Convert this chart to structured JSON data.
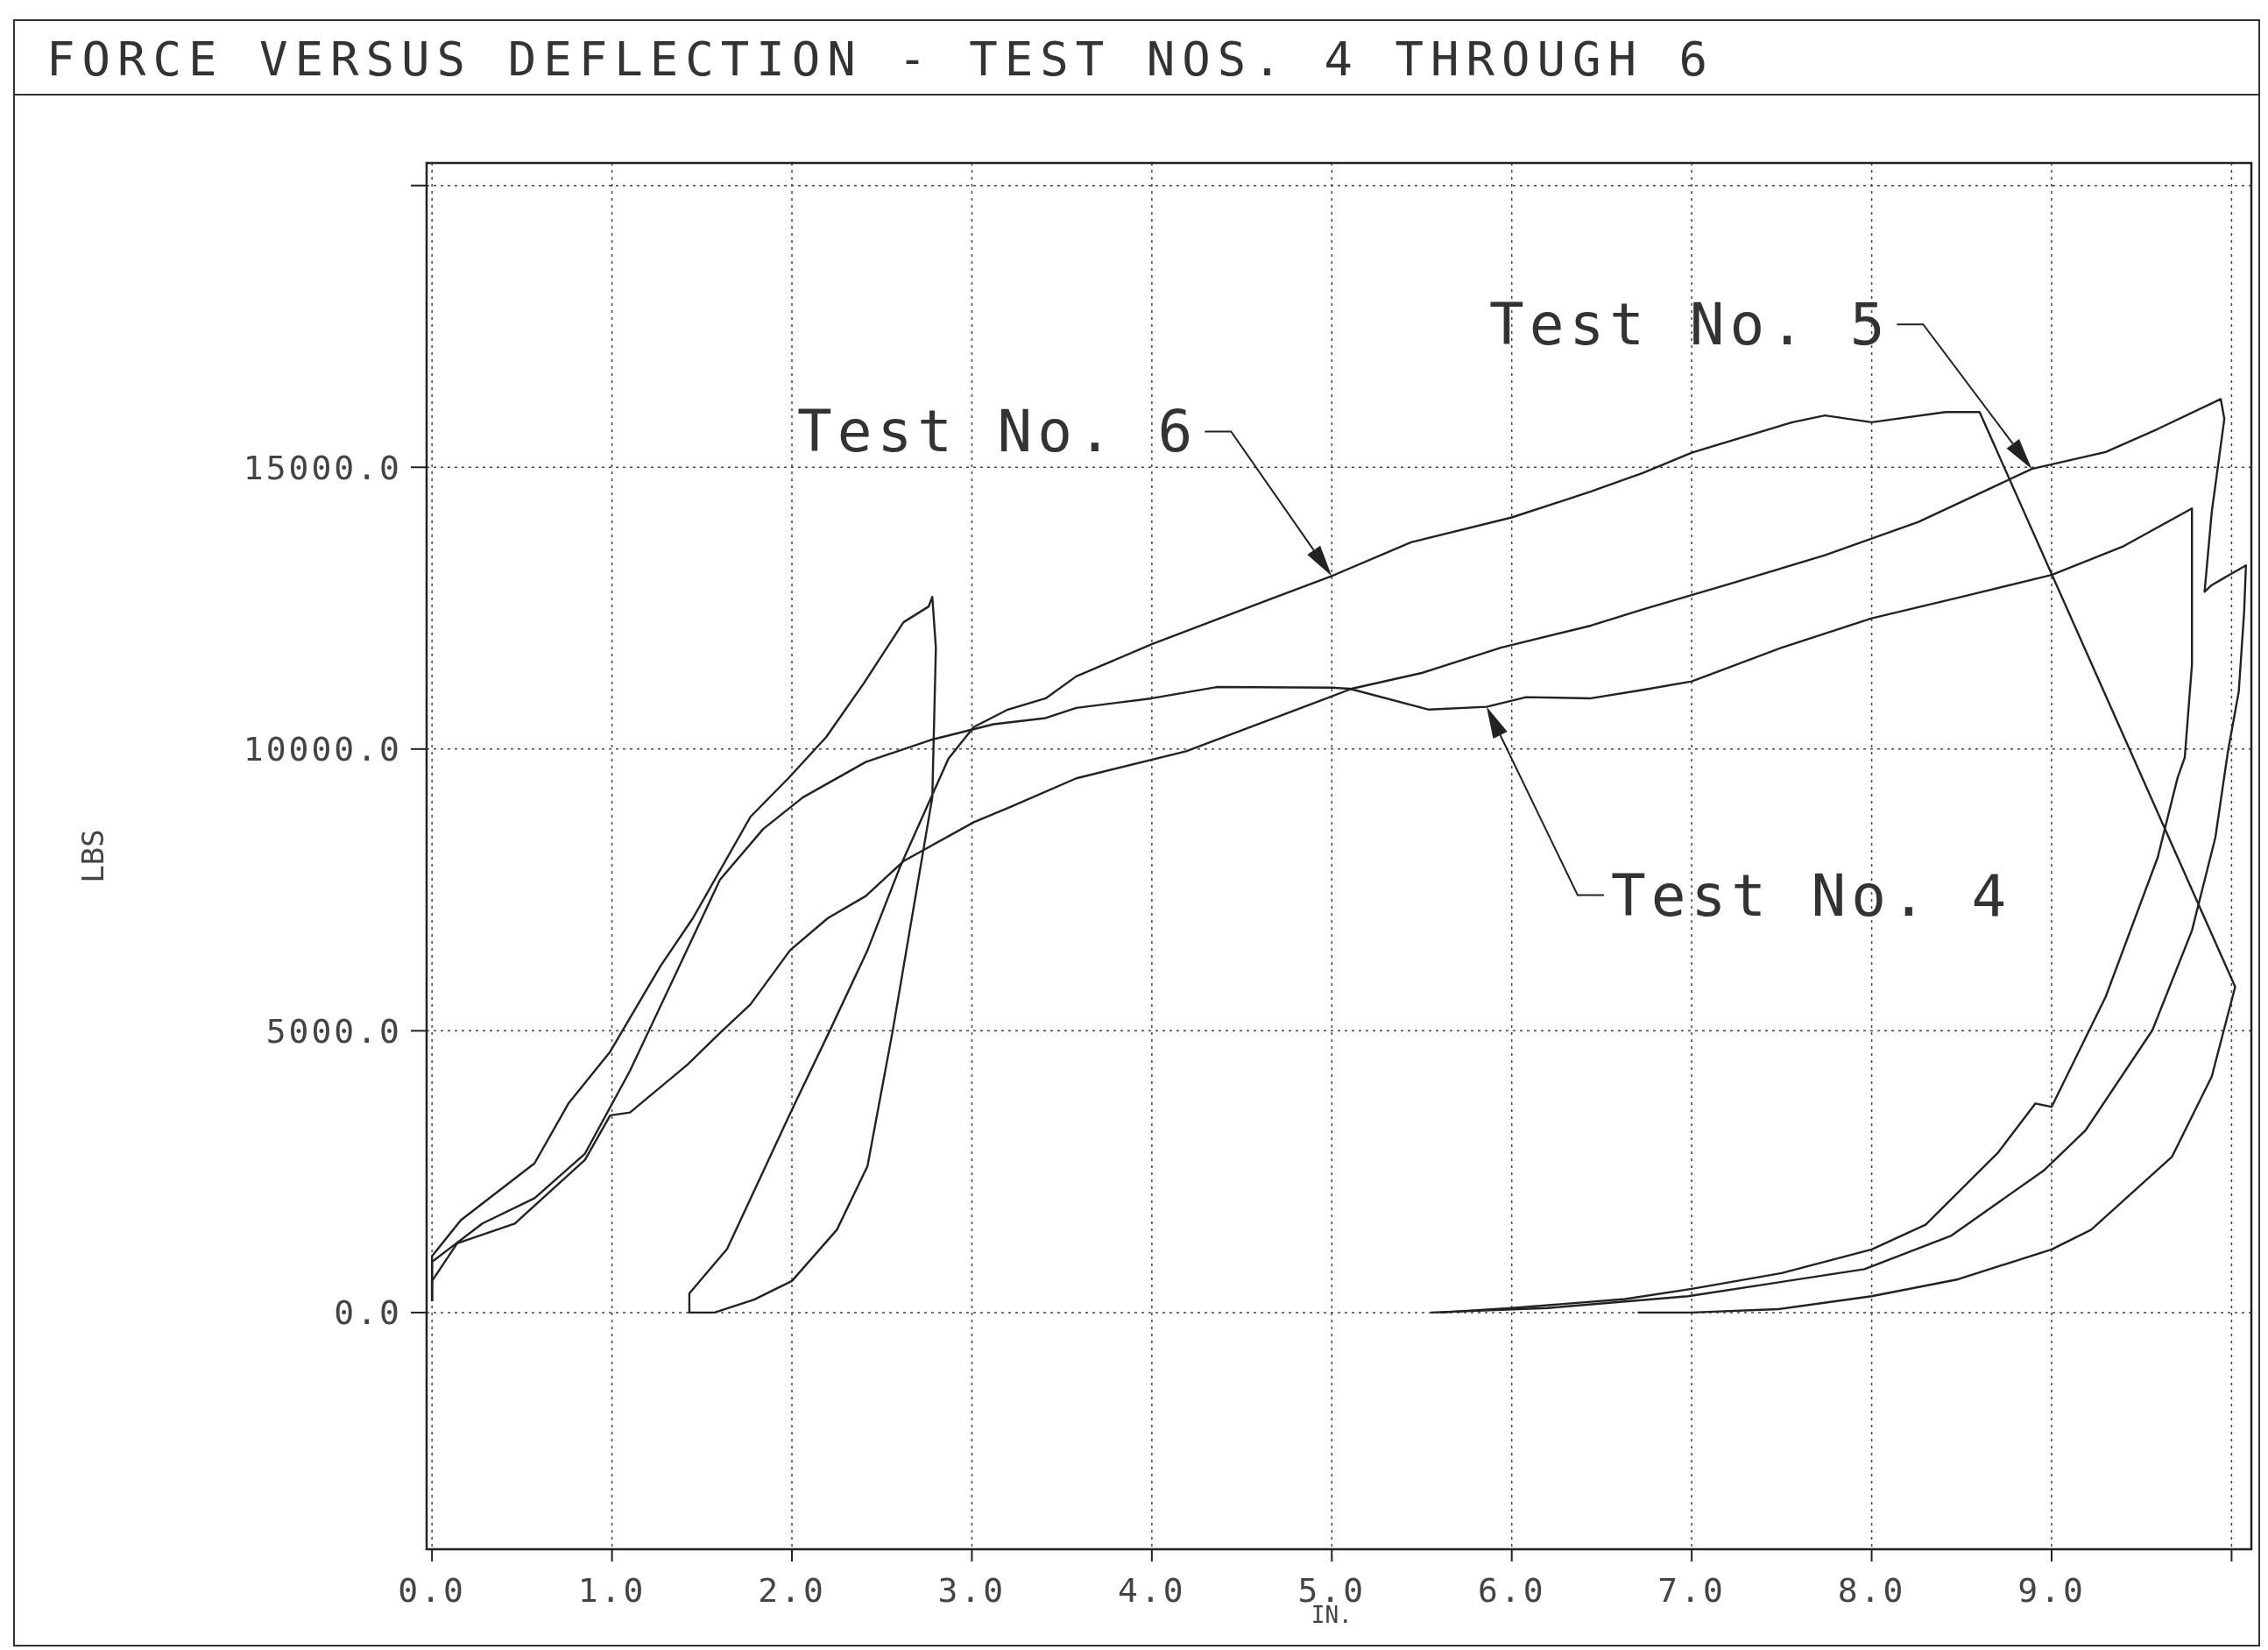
{
  "chart_data": {
    "type": "line",
    "title": "FORCE VERSUS DEFLECTION - TEST NOS. 4 THROUGH 6",
    "xlabel": "IN.",
    "ylabel": "LBS",
    "xlim": [
      -0.03,
      10.11
    ],
    "ylim": [
      -4200,
      20400
    ],
    "xticks": [
      {
        "value": 0,
        "label": "0.0"
      },
      {
        "value": 1,
        "label": "1.0"
      },
      {
        "value": 2,
        "label": "2.0"
      },
      {
        "value": 3,
        "label": "3.0"
      },
      {
        "value": 4,
        "label": "4.0"
      },
      {
        "value": 5,
        "label": "5.0"
      },
      {
        "value": 6,
        "label": "6.0"
      },
      {
        "value": 7,
        "label": "7.0"
      },
      {
        "value": 8,
        "label": "8.0"
      },
      {
        "value": 9,
        "label": "9.0"
      },
      {
        "value": 10,
        "label": null
      }
    ],
    "yticks": [
      {
        "value": 0,
        "label": "0.0"
      },
      {
        "value": 5000,
        "label": "5000.0"
      },
      {
        "value": 10000,
        "label": "10000.0"
      },
      {
        "value": 15000,
        "label": "15000.0"
      },
      {
        "value": 20000,
        "label": null
      }
    ],
    "grid": true,
    "series": [
      {
        "name": "Test No. 4",
        "color": "#222222",
        "x": [
          0,
          0,
          0.28,
          0.57,
          0.85,
          1.1,
          1.35,
          1.6,
          1.84,
          2.06,
          2.41,
          2.77,
          3.12,
          3.41,
          3.58,
          4.0,
          4.36,
          5.0,
          5.1,
          5.54,
          5.86,
          6.08,
          6.44,
          6.73,
          7.0,
          7.5,
          8.0,
          8.5,
          9.0,
          9.4,
          9.78,
          9.78,
          9.74,
          9.7,
          9.59,
          9.3,
          9.0,
          8.91,
          8.7,
          8.3,
          8.0,
          7.5,
          7.0,
          6.63,
          6.0,
          5.6
        ],
        "values": [
          200,
          900,
          1580,
          2030,
          2820,
          4290,
          5980,
          7680,
          8580,
          9140,
          9770,
          10160,
          10440,
          10550,
          10730,
          10900,
          11100,
          11090,
          11070,
          10700,
          10750,
          10920,
          10900,
          11050,
          11200,
          11800,
          12320,
          12700,
          13090,
          13600,
          14270,
          11500,
          9850,
          9490,
          8080,
          5600,
          3650,
          3710,
          2830,
          1560,
          1120,
          700,
          420,
          240,
          80,
          0
        ]
      },
      {
        "name": "Test No. 5",
        "color": "#222222",
        "x": [
          0,
          0,
          0.14,
          0.46,
          0.85,
          0.99,
          1.1,
          1.42,
          1.6,
          1.77,
          1.99,
          2.2,
          2.41,
          2.62,
          3.01,
          3.22,
          3.58,
          4.19,
          4.83,
          5.11,
          5.5,
          5.94,
          6.44,
          6.73,
          7.19,
          7.74,
          8.26,
          8.89,
          9.3,
          9.59,
          9.94,
          9.96,
          9.89,
          9.85,
          9.89,
          10.08,
          10.07,
          10.04,
          9.98,
          9.91,
          9.78,
          9.56,
          9.19,
          8.96,
          8.44,
          7.96,
          6.98,
          6.2,
          5.55
        ],
        "values": [
          200,
          560,
          1230,
          1580,
          2710,
          3500,
          3550,
          4400,
          4960,
          5470,
          6430,
          7000,
          7390,
          8010,
          8700,
          8980,
          9480,
          9960,
          10730,
          11070,
          11350,
          11800,
          12190,
          12480,
          12910,
          13440,
          14030,
          14970,
          15270,
          15680,
          16210,
          15860,
          14210,
          12790,
          12910,
          13260,
          12440,
          11020,
          9960,
          8430,
          6780,
          5010,
          3240,
          2530,
          1360,
          770,
          290,
          80,
          0
        ]
      },
      {
        "name": "Test No. 6",
        "color": "#222222",
        "x": [
          0,
          0,
          0.16,
          0.57,
          0.76,
          0.99,
          1.27,
          1.45,
          1.77,
          1.98,
          2.19,
          2.4,
          2.62,
          2.76,
          2.78,
          2.8,
          2.78,
          2.56,
          2.42,
          2.25,
          2.0,
          1.79,
          1.57,
          1.43,
          1.43,
          1.64,
          2.0,
          2.21,
          2.42,
          2.6,
          2.87,
          3.01,
          3.2,
          3.41,
          3.58,
          4.0,
          4.65,
          5.0,
          5.44,
          6.0,
          6.44,
          6.73,
          7.0,
          7.56,
          7.74,
          8.0,
          8.41,
          8.6,
          10.02,
          9.89,
          9.67,
          9.22,
          9.0,
          8.48,
          8.0,
          7.48,
          7.0,
          6.7
        ],
        "values": [
          200,
          1000,
          1640,
          2650,
          3720,
          4630,
          6150,
          7000,
          8800,
          9480,
          10210,
          11170,
          12250,
          12530,
          12700,
          11800,
          9140,
          5000,
          2600,
          1470,
          560,
          230,
          0,
          0,
          340,
          1130,
          3600,
          5000,
          6430,
          7900,
          9830,
          10390,
          10700,
          10900,
          11290,
          11860,
          12650,
          13070,
          13670,
          14110,
          14570,
          14900,
          15260,
          15800,
          15920,
          15800,
          15980,
          15980,
          5780,
          4190,
          2770,
          1470,
          1120,
          590,
          290,
          60,
          0,
          0
        ]
      }
    ]
  }
}
